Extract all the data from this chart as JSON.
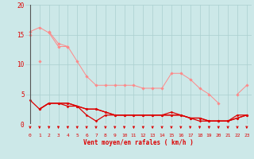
{
  "x": [
    0,
    1,
    2,
    3,
    4,
    5,
    6,
    7,
    8,
    9,
    10,
    11,
    12,
    13,
    14,
    15,
    16,
    17,
    18,
    19,
    20,
    21,
    22,
    23
  ],
  "pink_line1": [
    15.5,
    16.2,
    15.3,
    13.0,
    13.0,
    10.5,
    8.0,
    6.5,
    6.5,
    6.5,
    6.5,
    6.5,
    6.0,
    6.0,
    6.0,
    8.5,
    8.5,
    7.5,
    6.0,
    5.0,
    3.5,
    null,
    5.0,
    6.5
  ],
  "pink_line2": [
    15.0,
    null,
    15.5,
    13.5,
    13.0,
    null,
    null,
    null,
    null,
    null,
    null,
    null,
    null,
    null,
    null,
    null,
    null,
    null,
    null,
    null,
    null,
    null,
    null,
    null
  ],
  "pink_point1": [
    null,
    10.5,
    null,
    null,
    null,
    null,
    null,
    null,
    null,
    null,
    null,
    null,
    null,
    null,
    null,
    null,
    null,
    null,
    null,
    null,
    null,
    null,
    null,
    null
  ],
  "dark_line1": [
    4.0,
    2.5,
    3.5,
    3.5,
    3.5,
    3.0,
    1.5,
    0.5,
    1.5,
    1.5,
    1.5,
    1.5,
    1.5,
    1.5,
    1.5,
    2.0,
    1.5,
    1.0,
    1.0,
    0.5,
    0.5,
    0.5,
    1.5,
    1.5
  ],
  "dark_line2": [
    null,
    2.5,
    3.5,
    3.5,
    3.0,
    3.0,
    2.5,
    2.5,
    2.0,
    1.5,
    1.5,
    1.5,
    1.5,
    1.5,
    1.5,
    1.5,
    1.5,
    1.0,
    0.5,
    0.5,
    0.5,
    0.5,
    1.0,
    1.5
  ],
  "dark_line3": [
    null,
    2.5,
    3.5,
    3.5,
    3.5,
    3.0,
    2.5,
    2.5,
    2.0,
    1.5,
    1.5,
    1.5,
    1.5,
    1.5,
    1.5,
    1.5,
    1.5,
    1.0,
    1.0,
    0.5,
    0.5,
    0.5,
    1.0,
    1.5
  ],
  "xlim": [
    -0.5,
    23.5
  ],
  "ylim": [
    0,
    20
  ],
  "yticks": [
    0,
    5,
    10,
    15,
    20
  ],
  "xticks": [
    0,
    1,
    2,
    3,
    4,
    5,
    6,
    7,
    8,
    9,
    10,
    11,
    12,
    13,
    14,
    15,
    16,
    17,
    18,
    19,
    20,
    21,
    22,
    23
  ],
  "xlabel": "Vent moyen/en rafales ( km/h )",
  "bg_color": "#cce8e8",
  "grid_color": "#aacfcf",
  "pink": "#ff8888",
  "dark_red": "#dd0000"
}
